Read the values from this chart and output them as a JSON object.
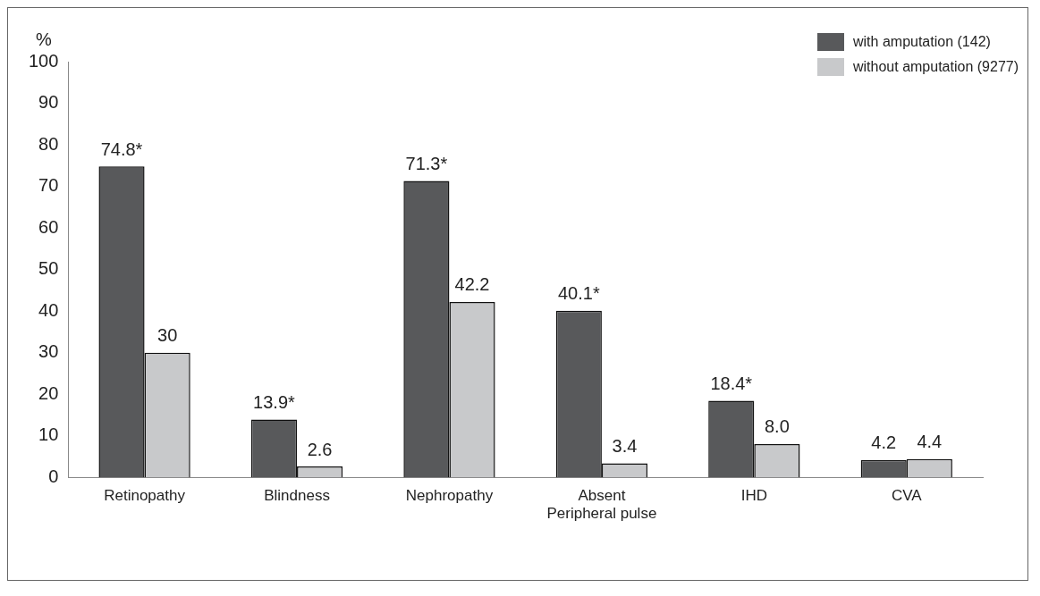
{
  "chart_data": {
    "type": "bar",
    "ylabel": "%",
    "categories": [
      "Retinopathy",
      "Blindness",
      "Nephropathy",
      "Absent\nPeripheral pulse",
      "IHD",
      "CVA"
    ],
    "series": [
      {
        "name": "with amputation (142)",
        "color": "#58595b",
        "values": [
          74.8,
          13.9,
          71.3,
          40.1,
          18.4,
          4.2
        ],
        "value_labels": [
          "74.8*",
          "13.9*",
          "71.3*",
          "40.1*",
          "18.4*",
          "4.2"
        ]
      },
      {
        "name": "without amputation (9277)",
        "color": "#c8c9cb",
        "values": [
          30,
          2.6,
          42.2,
          3.4,
          8.0,
          4.4
        ],
        "value_labels": [
          "30",
          "2.6",
          "42.2",
          "3.4",
          "8.0",
          "4.4"
        ]
      }
    ],
    "ylim": [
      0,
      100
    ],
    "yticks": [
      0,
      10,
      20,
      30,
      40,
      50,
      60,
      70,
      80,
      90,
      100
    ],
    "grid": false,
    "legend": "top right"
  }
}
